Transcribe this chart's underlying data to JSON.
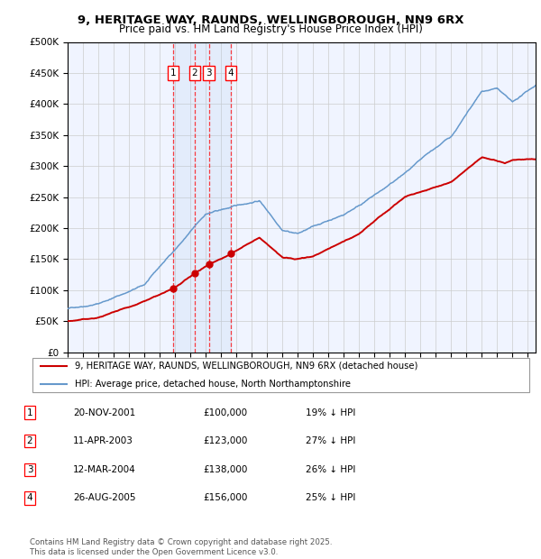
{
  "title_line1": "9, HERITAGE WAY, RAUNDS, WELLINGBOROUGH, NN9 6RX",
  "title_line2": "Price paid vs. HM Land Registry's House Price Index (HPI)",
  "legend_line1": "9, HERITAGE WAY, RAUNDS, WELLINGBOROUGH, NN9 6RX (detached house)",
  "legend_line2": "HPI: Average price, detached house, North Northamptonshire",
  "footnote": "Contains HM Land Registry data © Crown copyright and database right 2025.\nThis data is licensed under the Open Government Licence v3.0.",
  "transactions": [
    {
      "num": 1,
      "date": "20-NOV-2001",
      "price": 100000,
      "pct": "19%",
      "dir": "↓",
      "x": 2001.89
    },
    {
      "num": 2,
      "date": "11-APR-2003",
      "price": 123000,
      "pct": "27%",
      "dir": "↓",
      "x": 2003.28
    },
    {
      "num": 3,
      "date": "12-MAR-2004",
      "price": 138000,
      "pct": "26%",
      "dir": "↓",
      "x": 2004.2
    },
    {
      "num": 4,
      "date": "26-AUG-2005",
      "price": 156000,
      "pct": "25%",
      "dir": "↓",
      "x": 2005.65
    }
  ],
  "hpi_color": "#6699cc",
  "price_color": "#cc0000",
  "shade_color": "#ddeeff",
  "ylim": [
    0,
    500000
  ],
  "yticks": [
    0,
    50000,
    100000,
    150000,
    200000,
    250000,
    300000,
    350000,
    400000,
    450000,
    500000
  ],
  "xlim": [
    1995,
    2025.5
  ],
  "chart_bg": "#f0f4ff"
}
